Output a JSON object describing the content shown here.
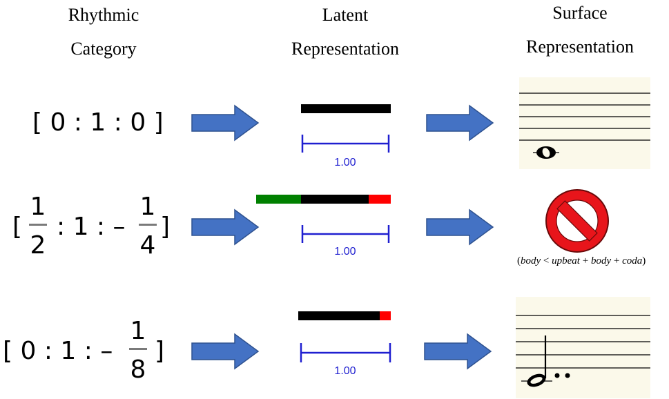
{
  "headers": {
    "category_line1": "Rhythmic",
    "category_line2": "Category",
    "latent_line1": "Latent",
    "latent_line2": "Representation",
    "surface_line1": "Surface",
    "surface_line2": "Representation"
  },
  "rows": [
    {
      "category": {
        "open": "[ 0 : 1 : 0 ]"
      },
      "latent": {
        "upbeat": 0,
        "body": 1,
        "coda": 0,
        "scale_label": "1.00"
      },
      "surface": "whole-note"
    },
    {
      "category": {
        "open": "[",
        "upbeat_num": "1",
        "upbeat_den": "2",
        "middle": ": 1 : –",
        "coda_num": "1",
        "coda_den": "4",
        "close": "]"
      },
      "latent": {
        "upbeat": 0.5,
        "body": 1,
        "coda": -0.25,
        "scale_label": "1.00"
      },
      "surface": "prohibited",
      "note": {
        "open": "(",
        "body": "body",
        "lt": " < ",
        "upbeat": "upbeat",
        "plus1": " + ",
        "body2": "body",
        "plus2": " + ",
        "coda": "coda",
        "close": ")"
      }
    },
    {
      "category": {
        "open": "[ 0 : 1 : –",
        "coda_num": "1",
        "coda_den": "8",
        "close": "]"
      },
      "latent": {
        "upbeat": 0,
        "body": 1,
        "coda": -0.125,
        "scale_label": "1.00"
      },
      "surface": "double-dotted-half-note"
    }
  ],
  "colors": {
    "arrow_fill": "#4472c4",
    "arrow_stroke": "#2f528f",
    "body_bar": "#000000",
    "upbeat_bar": "#008000",
    "coda_bar": "#ff0000",
    "scale": "#1f1fd0",
    "staff_bg": "#fbf9ea",
    "prohibited_red": "#e8151b"
  }
}
